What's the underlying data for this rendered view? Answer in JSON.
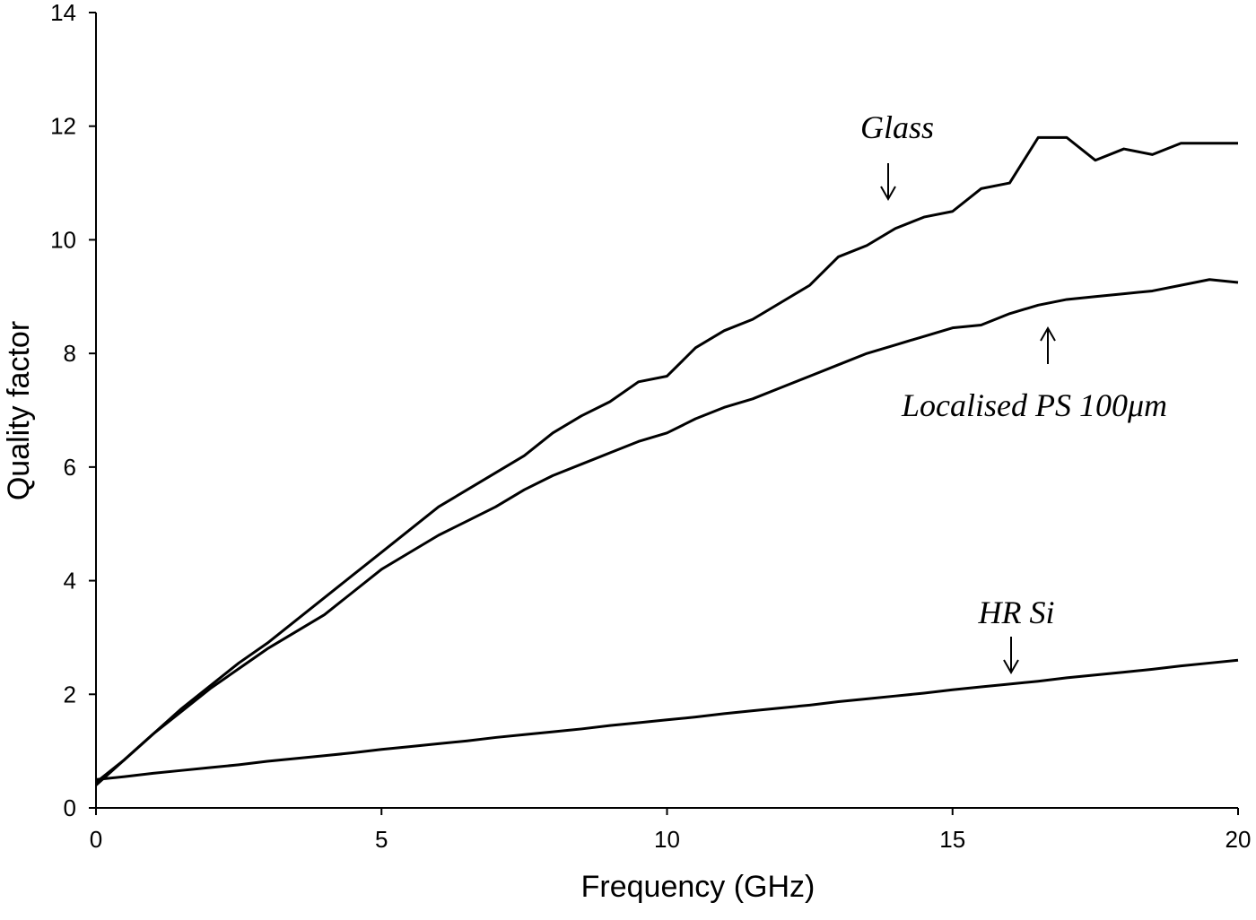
{
  "chart_data": {
    "type": "line",
    "xlabel": "Frequency (GHz)",
    "ylabel": "Quality factor",
    "x": [
      0,
      0.5,
      1,
      1.5,
      2,
      2.5,
      3,
      3.5,
      4,
      4.5,
      5,
      5.5,
      6,
      6.5,
      7,
      7.5,
      8,
      8.5,
      9,
      9.5,
      10,
      10.5,
      11,
      11.5,
      12,
      12.5,
      13,
      13.5,
      14,
      14.5,
      15,
      15.5,
      16,
      16.5,
      17,
      17.5,
      18,
      18.5,
      19,
      19.5,
      20
    ],
    "series": [
      {
        "name": "Glass",
        "color": "#000000",
        "values": [
          0.4,
          0.85,
          1.3,
          1.75,
          2.15,
          2.55,
          2.9,
          3.3,
          3.7,
          4.1,
          4.5,
          4.9,
          5.3,
          5.6,
          5.9,
          6.2,
          6.6,
          6.9,
          7.15,
          7.5,
          7.6,
          8.1,
          8.4,
          8.6,
          8.9,
          9.2,
          9.7,
          9.9,
          10.2,
          10.4,
          10.5,
          10.9,
          11.0,
          11.8,
          11.8,
          11.4,
          11.6,
          11.5,
          11.7,
          11.7,
          11.7
        ]
      },
      {
        "name": "Localised PS 100μm",
        "color": "#000000",
        "values": [
          0.45,
          0.85,
          1.3,
          1.7,
          2.1,
          2.45,
          2.8,
          3.1,
          3.4,
          3.8,
          4.2,
          4.5,
          4.8,
          5.05,
          5.3,
          5.6,
          5.85,
          6.05,
          6.25,
          6.45,
          6.6,
          6.85,
          7.05,
          7.2,
          7.4,
          7.6,
          7.8,
          8.0,
          8.15,
          8.3,
          8.45,
          8.5,
          8.7,
          8.85,
          8.95,
          9.0,
          9.05,
          9.1,
          9.2,
          9.3,
          9.25
        ]
      },
      {
        "name": "HR Si",
        "color": "#000000",
        "values": [
          0.5,
          0.55,
          0.61,
          0.66,
          0.71,
          0.76,
          0.82,
          0.87,
          0.92,
          0.97,
          1.03,
          1.08,
          1.13,
          1.18,
          1.24,
          1.29,
          1.34,
          1.39,
          1.45,
          1.5,
          1.55,
          1.6,
          1.66,
          1.71,
          1.76,
          1.81,
          1.87,
          1.92,
          1.97,
          2.02,
          2.08,
          2.13,
          2.18,
          2.23,
          2.29,
          2.34,
          2.39,
          2.44,
          2.5,
          2.55,
          2.6
        ]
      }
    ],
    "xlim": [
      0,
      20
    ],
    "xticks": [
      0,
      5,
      10,
      15,
      20
    ],
    "ylim": [
      0,
      14
    ],
    "yticks": [
      0,
      2,
      4,
      6,
      8,
      10,
      12,
      14
    ]
  }
}
